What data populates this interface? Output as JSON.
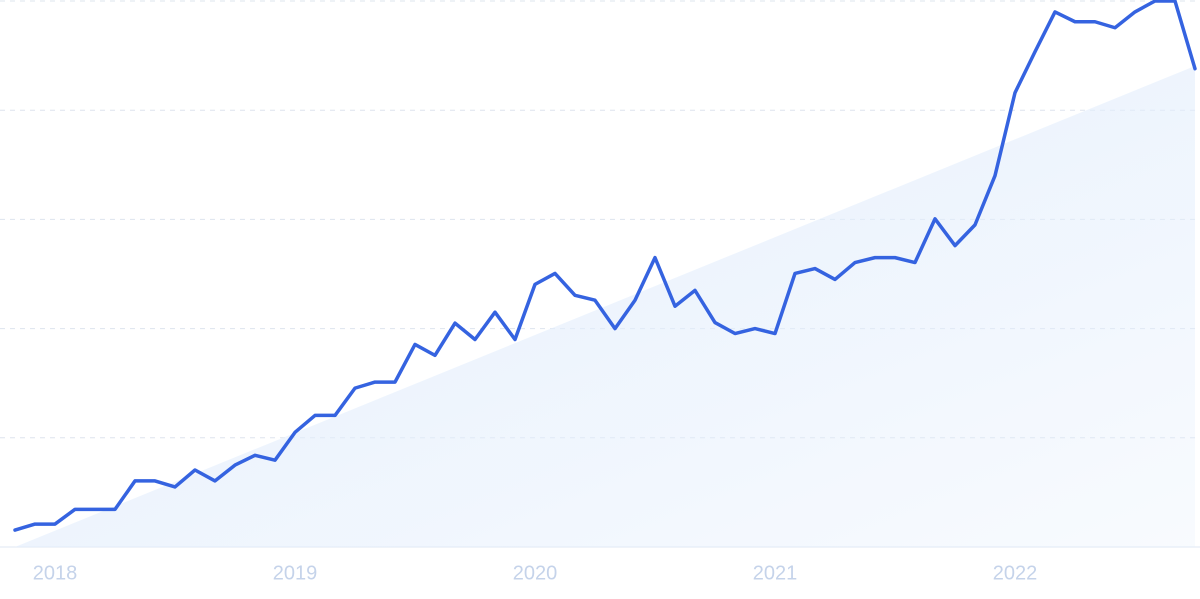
{
  "chart_data": {
    "type": "line",
    "categories": [
      null,
      null,
      "2018",
      null,
      null,
      null,
      null,
      null,
      null,
      null,
      null,
      null,
      null,
      null,
      "2019",
      null,
      null,
      null,
      null,
      null,
      null,
      null,
      null,
      null,
      null,
      null,
      "2020",
      null,
      null,
      null,
      null,
      null,
      null,
      null,
      null,
      null,
      null,
      null,
      "2021",
      null,
      null,
      null,
      null,
      null,
      null,
      null,
      null,
      null,
      null,
      null,
      "2022",
      null,
      null,
      null,
      null,
      null,
      null,
      null,
      null,
      null
    ],
    "series": [
      {
        "color": "#3563e0",
        "values": [
          3.1,
          4.2,
          4.2,
          6.9,
          6.9,
          6.9,
          12.1,
          12.1,
          11.0,
          14.1,
          12.1,
          15.0,
          16.8,
          15.9,
          21.0,
          24.1,
          24.1,
          29.1,
          30.2,
          30.2,
          37.1,
          35.1,
          41.0,
          38.0,
          43.0,
          38.0,
          48.1,
          50.1,
          46.1,
          45.2,
          40.0,
          45.2,
          53.0,
          44.1,
          47.0,
          41.1,
          39.1,
          40.0,
          39.1,
          50.1,
          51.0,
          49.0,
          52.1,
          53.0,
          53.0,
          52.1,
          60.1,
          55.2,
          59.0,
          68.0,
          83.2,
          90.7,
          98.0,
          96.2,
          96.2,
          95.1,
          98.0,
          100,
          100,
          87.6
        ]
      }
    ],
    "trend": {
      "color": "#e3eefc",
      "values": [
        0,
        88.1
      ]
    },
    "ylim": [
      0,
      100
    ],
    "grid_lines": [
      0,
      20,
      40,
      60,
      80,
      100
    ],
    "grid": true
  }
}
